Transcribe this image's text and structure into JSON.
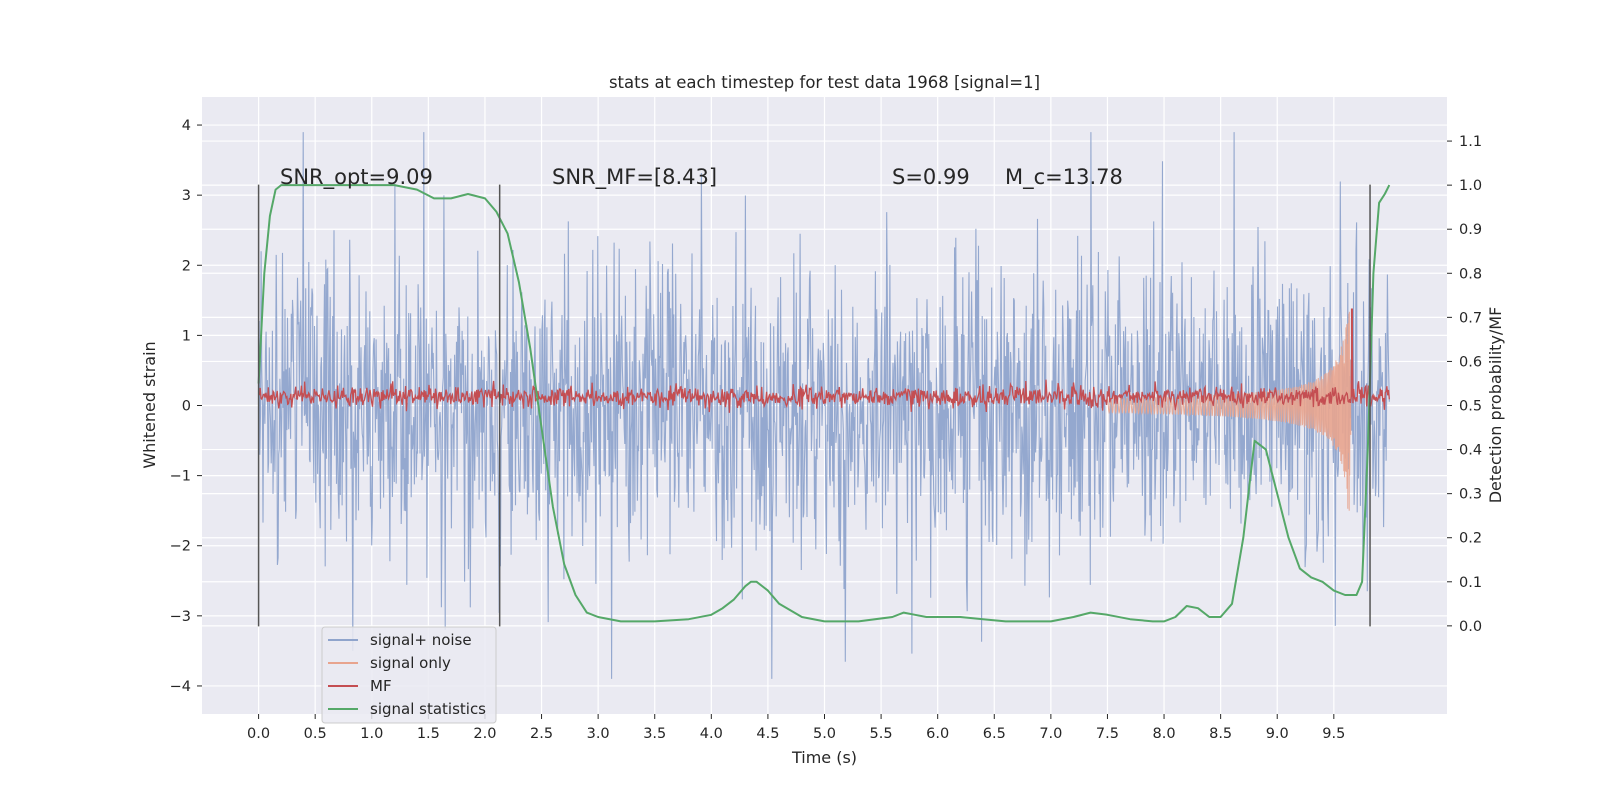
{
  "chart_data": {
    "type": "line",
    "title": "stats at each timestep for test data 1968 [signal=1]",
    "xlabel": "Time (s)",
    "ylabel_left": "Whitened strain",
    "ylabel_right": "Detection probability/MF",
    "xlim": [
      -0.5,
      10.5
    ],
    "ylim_left": [
      -4.4,
      4.4
    ],
    "ylim_right": [
      -0.2,
      1.2
    ],
    "x_ticks": [
      "0.0",
      "0.5",
      "1.0",
      "1.5",
      "2.0",
      "2.5",
      "3.0",
      "3.5",
      "4.0",
      "4.5",
      "5.0",
      "5.5",
      "6.0",
      "6.5",
      "7.0",
      "7.5",
      "8.0",
      "8.5",
      "9.0",
      "9.5"
    ],
    "y_ticks_left": [
      "4",
      "3",
      "2",
      "1",
      "0",
      "−1",
      "−2",
      "−3",
      "−4"
    ],
    "y_ticks_right": [
      "1.1",
      "1.0",
      "0.9",
      "0.8",
      "0.7",
      "0.6",
      "0.5",
      "0.4",
      "0.3",
      "0.2",
      "0.1",
      "0.0"
    ],
    "grid": true,
    "legend_position": "lower-left",
    "annotations": [
      {
        "text": "SNR_opt=9.09",
        "x": 0.2,
        "y": 3.2
      },
      {
        "text": "SNR_MF=[8.43]",
        "x": 2.6,
        "y": 3.2
      },
      {
        "text": "S=0.99",
        "x": 5.6,
        "y": 3.2
      },
      {
        "text": "M_c=13.78",
        "x": 6.6,
        "y": 3.2
      }
    ],
    "vertical_markers_x": [
      0.0,
      2.13,
      9.82
    ],
    "series": [
      {
        "name": "signal+ noise",
        "color": "#8fa4cc",
        "axis": "left",
        "description_stats": {
          "x_range": [
            0.0,
            9.99
          ],
          "typical_band": [
            -1.3,
            1.3
          ],
          "peak_range": [
            -4.0,
            4.0
          ]
        }
      },
      {
        "name": "signal only",
        "color": "#e8a48e",
        "axis": "left",
        "chirp": {
          "x_start": 7.5,
          "x_merger": 9.65,
          "amp_start": 0.1,
          "amp_peak": 1.5
        }
      },
      {
        "name": "MF",
        "color": "#c44e52",
        "axis": "right",
        "baseline": 0.52,
        "spike": {
          "x": 9.66,
          "y": 0.72
        }
      },
      {
        "name": "signal statistics",
        "color": "#55a868",
        "axis": "right",
        "x": [
          0.0,
          0.05,
          0.1,
          0.15,
          0.2,
          0.4,
          0.8,
          1.2,
          1.4,
          1.55,
          1.7,
          1.85,
          2.0,
          2.1,
          2.2,
          2.3,
          2.4,
          2.5,
          2.6,
          2.7,
          2.8,
          2.9,
          3.0,
          3.2,
          3.5,
          3.8,
          4.0,
          4.1,
          4.2,
          4.3,
          4.35,
          4.4,
          4.5,
          4.6,
          4.8,
          5.0,
          5.3,
          5.6,
          5.7,
          5.8,
          5.9,
          6.0,
          6.2,
          6.4,
          6.6,
          7.0,
          7.2,
          7.35,
          7.5,
          7.7,
          7.9,
          8.0,
          8.1,
          8.2,
          8.3,
          8.4,
          8.5,
          8.6,
          8.7,
          8.8,
          8.9,
          9.0,
          9.1,
          9.2,
          9.3,
          9.4,
          9.5,
          9.6,
          9.7,
          9.75,
          9.8,
          9.85,
          9.9,
          9.95,
          9.99
        ],
        "y": [
          0.55,
          0.8,
          0.93,
          0.99,
          1.0,
          1.0,
          1.0,
          1.0,
          0.99,
          0.97,
          0.97,
          0.98,
          0.97,
          0.94,
          0.89,
          0.78,
          0.63,
          0.45,
          0.27,
          0.14,
          0.07,
          0.03,
          0.02,
          0.01,
          0.01,
          0.015,
          0.025,
          0.04,
          0.06,
          0.09,
          0.1,
          0.1,
          0.08,
          0.05,
          0.02,
          0.01,
          0.01,
          0.02,
          0.03,
          0.025,
          0.02,
          0.02,
          0.02,
          0.015,
          0.01,
          0.01,
          0.02,
          0.03,
          0.025,
          0.015,
          0.01,
          0.01,
          0.02,
          0.045,
          0.04,
          0.02,
          0.02,
          0.05,
          0.2,
          0.42,
          0.4,
          0.3,
          0.2,
          0.13,
          0.11,
          0.1,
          0.08,
          0.07,
          0.07,
          0.1,
          0.4,
          0.8,
          0.96,
          0.98,
          1.0
        ]
      }
    ]
  }
}
